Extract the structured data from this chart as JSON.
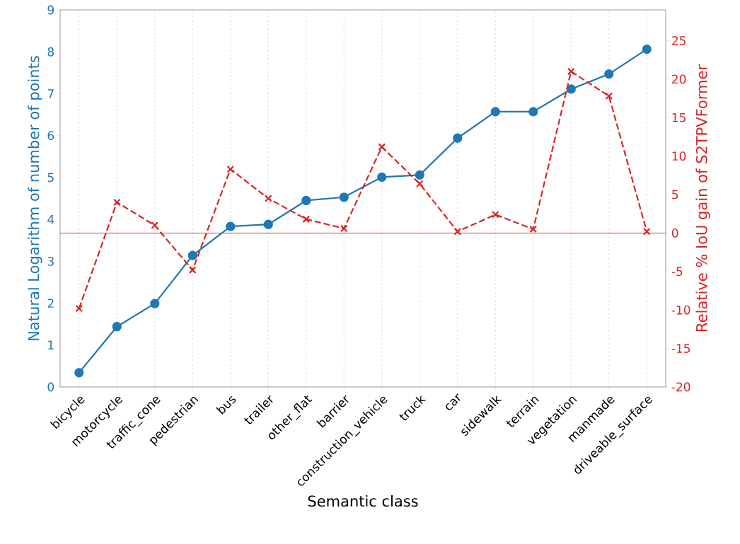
{
  "chart_data": {
    "type": "line",
    "xlabel": "Semantic class",
    "ylabel": "Natural Logarithm of number of points",
    "y2label": "Relative % IoU gain of S2TPVFormer",
    "categories": [
      "bicycle",
      "motorcycle",
      "traffic_cone",
      "pedestrian",
      "bus",
      "trailer",
      "other_flat",
      "barrier",
      "construction_vehicle",
      "truck",
      "car",
      "sidewalk",
      "terrain",
      "vegetation",
      "manmade",
      "driveable_surface"
    ],
    "series": [
      {
        "color": "#1f77b4",
        "marker": "circle",
        "line_style": "solid",
        "values": [
          0.34,
          1.44,
          1.99,
          3.14,
          3.83,
          3.88,
          4.45,
          4.53,
          5.01,
          5.06,
          5.94,
          6.57,
          6.57,
          7.11,
          7.47,
          8.06
        ]
      },
      {
        "color": "#d62728",
        "marker": "cross",
        "line_style": "dashed",
        "axis": "y2",
        "values": [
          -9.8,
          4.0,
          1.0,
          -4.8,
          8.3,
          4.5,
          1.8,
          0.6,
          11.2,
          6.4,
          0.2,
          2.4,
          0.5,
          21.0,
          17.8,
          0.2
        ]
      }
    ],
    "ylim": [
      0,
      9
    ],
    "yticks": [
      0,
      1,
      2,
      3,
      4,
      5,
      6,
      7,
      8,
      9
    ],
    "y2lim": [
      -20,
      29
    ],
    "y2ticks": [
      -20,
      -15,
      -10,
      -5,
      0,
      5,
      10,
      15,
      20,
      25
    ],
    "ref_lines": [
      {
        "axis": "y2",
        "value": 0,
        "color": "#d62728",
        "line_style": "solid"
      }
    ],
    "grid": "x"
  }
}
